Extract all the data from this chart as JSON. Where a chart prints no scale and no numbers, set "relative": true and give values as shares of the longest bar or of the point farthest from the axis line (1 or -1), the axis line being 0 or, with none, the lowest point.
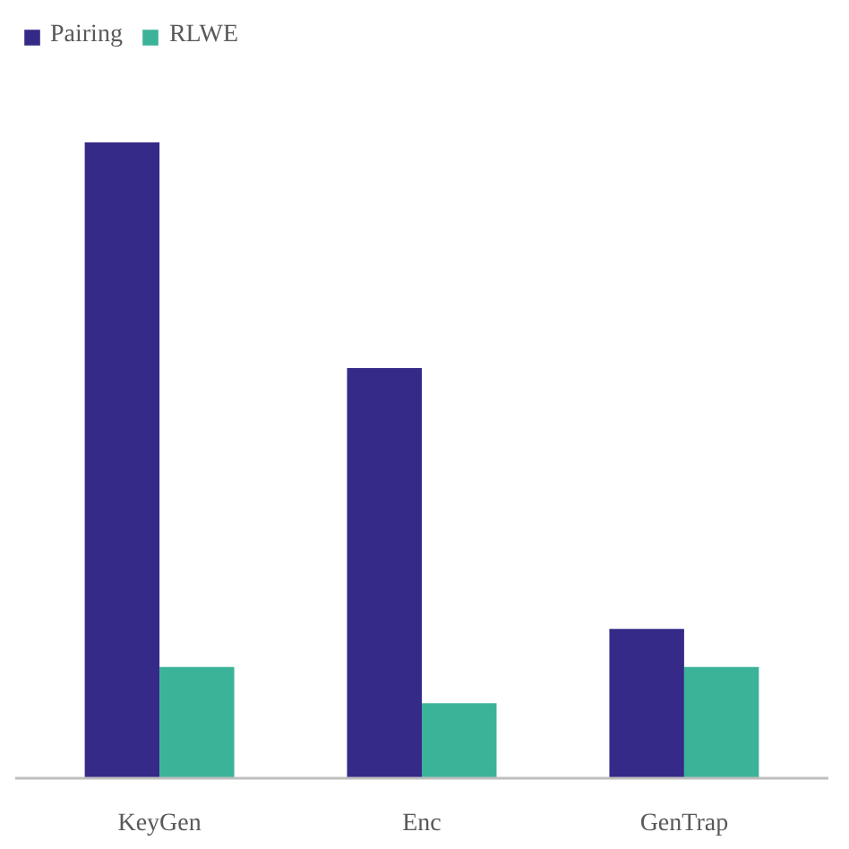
{
  "chart_data": {
    "type": "bar",
    "relative": true,
    "categories": [
      "KeyGen",
      "Enc",
      "GenTrap"
    ],
    "series": [
      {
        "name": "Pairing",
        "color": "#352a87",
        "values": [
          1,
          0.645,
          0.235
        ]
      },
      {
        "name": "RLWE",
        "color": "#3bb398",
        "values": [
          0.175,
          0.118,
          0.175
        ]
      }
    ],
    "legend": "top left",
    "grid": false
  }
}
